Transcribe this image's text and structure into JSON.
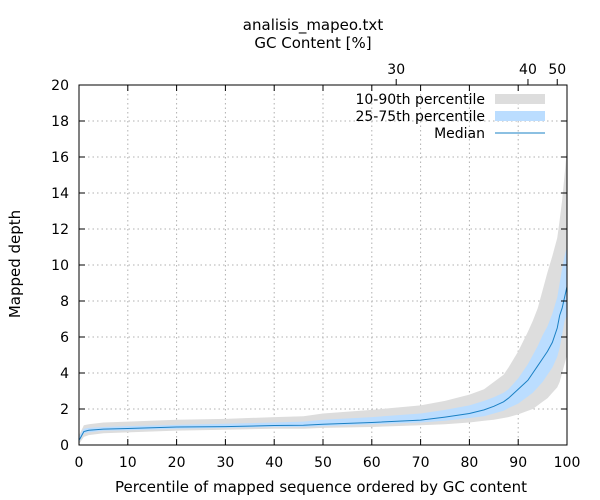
{
  "chart_data": {
    "type": "area",
    "title": "analisis_mapeo.txt",
    "top_axis_label": "GC Content [%]",
    "top_ticks": [
      {
        "label": "30",
        "x": 65
      },
      {
        "label": "40",
        "x": 92
      },
      {
        "label": "50",
        "x": 98
      }
    ],
    "xlabel": "Percentile of mapped sequence ordered by GC content",
    "ylabel": "Mapped depth",
    "xlim": [
      0,
      100
    ],
    "ylim": [
      0,
      20
    ],
    "xticks": [
      0,
      10,
      20,
      30,
      40,
      50,
      60,
      70,
      80,
      90,
      100
    ],
    "yticks": [
      0,
      2,
      4,
      6,
      8,
      10,
      12,
      14,
      16,
      18,
      20
    ],
    "grid": true,
    "legend_position": "top-right",
    "legend": [
      {
        "label": "10-90th percentile",
        "color": "#dddddd",
        "kind": "band"
      },
      {
        "label": "25-75th percentile",
        "color": "#bbddff",
        "kind": "band"
      },
      {
        "label": "Median",
        "color": "#1a80c4",
        "kind": "line"
      }
    ],
    "x": [
      0.1,
      1,
      2,
      5,
      10,
      20,
      30,
      40,
      46,
      50,
      60,
      70,
      75,
      80,
      83,
      85,
      87,
      88,
      90,
      92,
      93,
      94,
      95,
      96,
      97,
      98,
      98.5,
      99,
      99.5,
      100
    ],
    "p10": [
      0.1,
      0.45,
      0.55,
      0.65,
      0.7,
      0.8,
      0.85,
      0.9,
      0.9,
      0.95,
      1.0,
      1.1,
      1.15,
      1.25,
      1.35,
      1.4,
      1.5,
      1.55,
      1.7,
      1.9,
      2.0,
      2.2,
      2.4,
      2.6,
      2.9,
      3.2,
      3.5,
      4.0,
      4.5,
      5.0
    ],
    "p25": [
      0.2,
      0.65,
      0.7,
      0.8,
      0.82,
      0.9,
      0.95,
      1.0,
      1.0,
      1.05,
      1.15,
      1.25,
      1.35,
      1.5,
      1.6,
      1.75,
      1.9,
      2.05,
      2.3,
      2.7,
      2.9,
      3.2,
      3.5,
      3.9,
      4.3,
      4.9,
      5.4,
      6.1,
      6.9,
      7.2
    ],
    "median": [
      0.3,
      0.75,
      0.82,
      0.88,
      0.92,
      1.0,
      1.02,
      1.08,
      1.1,
      1.15,
      1.25,
      1.38,
      1.55,
      1.75,
      1.95,
      2.15,
      2.4,
      2.6,
      3.1,
      3.6,
      4.0,
      4.4,
      4.8,
      5.2,
      5.7,
      6.5,
      7.2,
      7.6,
      8.2,
      8.8
    ],
    "p75": [
      0.5,
      0.9,
      0.95,
      1.0,
      1.05,
      1.12,
      1.18,
      1.25,
      1.3,
      1.4,
      1.55,
      1.75,
      1.95,
      2.2,
      2.45,
      2.65,
      2.9,
      3.1,
      3.7,
      4.5,
      5.0,
      5.5,
      6.1,
      6.6,
      7.3,
      8.2,
      9.0,
      9.8,
      10.5,
      11.0
    ],
    "p90": [
      0.6,
      1.1,
      1.15,
      1.25,
      1.3,
      1.4,
      1.45,
      1.55,
      1.6,
      1.75,
      1.95,
      2.2,
      2.45,
      2.8,
      3.1,
      3.5,
      3.9,
      4.3,
      5.2,
      6.3,
      6.9,
      7.6,
      8.6,
      9.6,
      10.5,
      11.5,
      12.5,
      13.6,
      15.0,
      16.5
    ]
  }
}
